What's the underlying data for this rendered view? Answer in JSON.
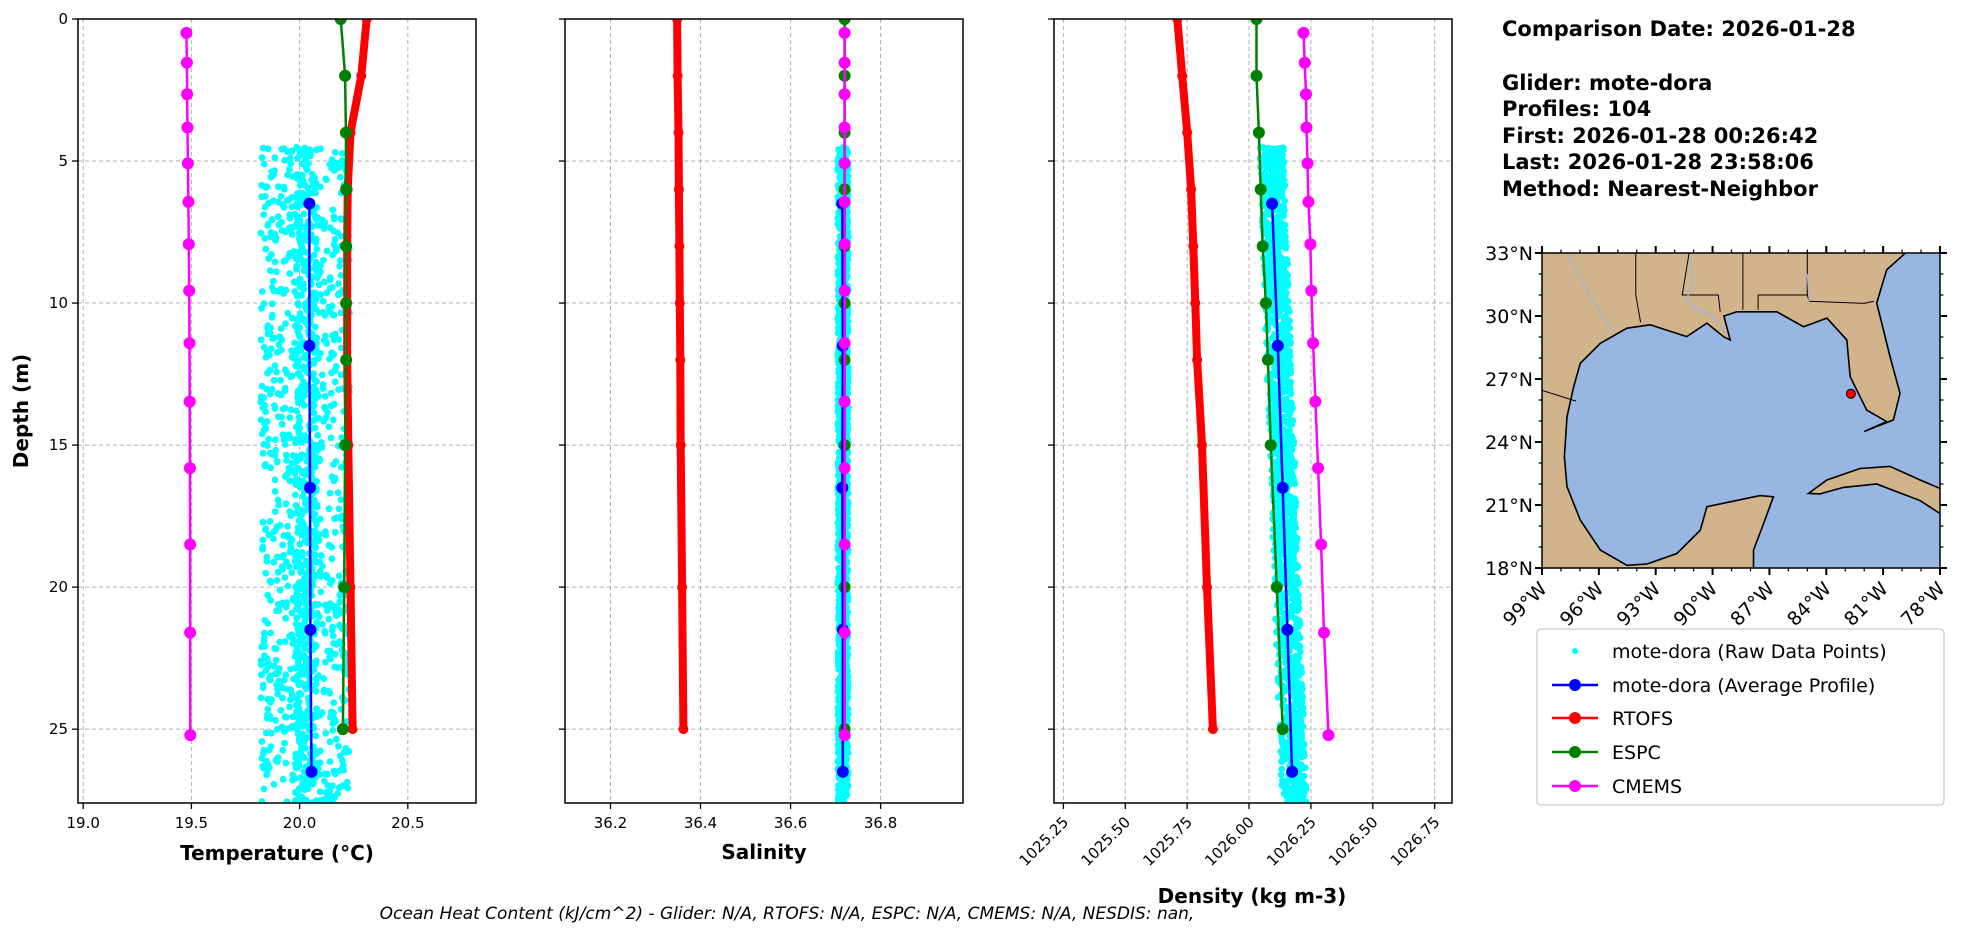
{
  "info": {
    "comparison_date": "Comparison Date: 2026-01-28",
    "glider": "Glider: mote-dora",
    "profiles": "Profiles: 104",
    "first": "First: 2026-01-28 00:26:42",
    "last": "Last: 2026-01-28 23:58:06",
    "method": "Method: Nearest-Neighbor"
  },
  "footer": "Ocean Heat Content (kJ/cm^2) - Glider: N/A,  RTOFS: N/A,  ESPC: N/A,  CMEMS: N/A,  NESDIS: nan,",
  "legend": [
    {
      "label": "mote-dora (Raw Data Points)",
      "color": "#00ffff",
      "style": "points"
    },
    {
      "label": "mote-dora (Average Profile)",
      "color": "#0000ff",
      "style": "line-marker"
    },
    {
      "label": "RTOFS",
      "color": "#ff0000",
      "style": "line-marker"
    },
    {
      "label": "ESPC",
      "color": "#008000",
      "style": "line-marker"
    },
    {
      "label": "CMEMS",
      "color": "#ff00ff",
      "style": "line-marker"
    }
  ],
  "chart_data": [
    {
      "type": "line",
      "title": "",
      "xlabel": "Temperature (°C)",
      "ylabel": "Depth (m)",
      "xlim": [
        18.976,
        20.815
      ],
      "ylim": [
        27.6,
        0
      ],
      "xticks": [
        "19.0",
        "19.5",
        "20.0",
        "20.5"
      ],
      "yticks": [
        "0",
        "5",
        "10",
        "15",
        "20",
        "25"
      ],
      "grid": true,
      "raw_points": {
        "series": "mote-dora (Raw Data Points)",
        "depth_range": [
          4.5,
          27.6
        ],
        "value_range": [
          19.82,
          20.23
        ],
        "center": 20.03
      },
      "series": [
        {
          "name": "mote-dora (Average Profile)",
          "depth": [
            6.5,
            11.5,
            16.5,
            21.5,
            26.5
          ],
          "values": [
            20.045,
            20.045,
            20.048,
            20.05,
            20.055
          ]
        },
        {
          "name": "RTOFS",
          "depth": [
            0,
            2,
            4,
            6,
            8,
            10,
            12,
            15,
            20,
            25
          ],
          "values": [
            20.31,
            20.285,
            20.235,
            20.222,
            20.22,
            20.22,
            20.22,
            20.225,
            20.235,
            20.245
          ]
        },
        {
          "name": "ESPC",
          "depth": [
            0,
            2,
            4,
            6,
            8,
            10,
            12,
            15,
            20,
            25
          ],
          "values": [
            20.19,
            20.21,
            20.214,
            20.215,
            20.215,
            20.215,
            20.215,
            20.21,
            20.206,
            20.2
          ]
        },
        {
          "name": "CMEMS",
          "depth": [
            0.49,
            1.54,
            2.65,
            3.82,
            5.08,
            6.44,
            7.93,
            9.57,
            11.41,
            13.47,
            15.81,
            18.5,
            21.6,
            25.21
          ],
          "values": [
            19.477,
            19.479,
            19.48,
            19.482,
            19.484,
            19.486,
            19.488,
            19.49,
            19.491,
            19.492,
            19.493,
            19.494,
            19.494,
            19.495
          ]
        }
      ]
    },
    {
      "type": "line",
      "title": "",
      "xlabel": "Salinity",
      "ylabel": "",
      "xlim": [
        36.099,
        36.983
      ],
      "ylim": [
        27.6,
        0
      ],
      "xticks": [
        "36.2",
        "36.4",
        "36.6",
        "36.8"
      ],
      "grid": true,
      "raw_points": {
        "series": "mote-dora (Raw Data Points)",
        "depth_range": [
          4.5,
          27.6
        ],
        "value_range": [
          36.705,
          36.728
        ],
        "center": 36.716
      },
      "series": [
        {
          "name": "mote-dora (Average Profile)",
          "depth": [
            6.5,
            11.5,
            16.5,
            21.5,
            26.5
          ],
          "values": [
            36.715,
            36.716,
            36.715,
            36.716,
            36.716
          ]
        },
        {
          "name": "RTOFS",
          "depth": [
            0,
            2,
            4,
            6,
            8,
            10,
            12,
            15,
            20,
            25
          ],
          "values": [
            36.348,
            36.349,
            36.351,
            36.352,
            36.353,
            36.354,
            36.355,
            36.356,
            36.359,
            36.362
          ]
        },
        {
          "name": "ESPC",
          "depth": [
            0,
            2,
            4,
            6,
            8,
            10,
            12,
            15,
            20,
            25
          ],
          "values": [
            36.72,
            36.72,
            36.72,
            36.72,
            36.72,
            36.72,
            36.72,
            36.72,
            36.72,
            36.72
          ]
        },
        {
          "name": "CMEMS",
          "depth": [
            0.49,
            1.54,
            2.65,
            3.82,
            5.08,
            6.44,
            7.93,
            9.57,
            11.41,
            13.47,
            15.81,
            18.5,
            21.6,
            25.21
          ],
          "values": [
            36.72,
            36.72,
            36.72,
            36.72,
            36.72,
            36.72,
            36.72,
            36.72,
            36.72,
            36.72,
            36.72,
            36.72,
            36.72,
            36.72
          ]
        }
      ]
    },
    {
      "type": "line",
      "title": "",
      "xlabel": "Density (kg m-3)",
      "ylabel": "",
      "xlim": [
        1025.212,
        1026.82
      ],
      "ylim": [
        27.6,
        0
      ],
      "xticks": [
        "1025.25",
        "1025.50",
        "1025.75",
        "1026.00",
        "1026.25",
        "1026.50",
        "1026.75"
      ],
      "grid": true,
      "raw_points": {
        "series": "mote-dora (Raw Data Points)",
        "depth_range": [
          4.5,
          27.6
        ],
        "value_range": [
          1026.04,
          1026.2
        ],
        "center_offset_from_average": 0.02
      },
      "series": [
        {
          "name": "mote-dora (Average Profile)",
          "depth": [
            6.5,
            11.5,
            16.5,
            21.5,
            26.5
          ],
          "values": [
            1026.093,
            1026.116,
            1026.136,
            1026.155,
            1026.174
          ]
        },
        {
          "name": "RTOFS",
          "depth": [
            0,
            2,
            4,
            6,
            8,
            10,
            12,
            15,
            20,
            25
          ],
          "values": [
            1025.71,
            1025.73,
            1025.75,
            1025.766,
            1025.775,
            1025.783,
            1025.79,
            1025.81,
            1025.83,
            1025.854
          ]
        },
        {
          "name": "ESPC",
          "depth": [
            0,
            2,
            4,
            6,
            8,
            10,
            12,
            15,
            20,
            25
          ],
          "values": [
            1026.03,
            1026.03,
            1026.04,
            1026.047,
            1026.055,
            1026.068,
            1026.076,
            1026.088,
            1026.112,
            1026.136
          ]
        },
        {
          "name": "CMEMS",
          "depth": [
            0.49,
            1.54,
            2.65,
            3.82,
            5.08,
            6.44,
            7.93,
            9.57,
            11.41,
            13.47,
            15.81,
            18.5,
            21.6,
            25.21
          ],
          "values": [
            1026.22,
            1026.225,
            1026.23,
            1026.232,
            1026.236,
            1026.24,
            1026.248,
            1026.252,
            1026.259,
            1026.268,
            1026.279,
            1026.291,
            1026.303,
            1026.321
          ]
        }
      ]
    },
    {
      "type": "scatter",
      "title": "",
      "xlim": [
        -99,
        -78
      ],
      "ylim": [
        18,
        33
      ],
      "xticks": [
        "99°W",
        "96°W",
        "93°W",
        "90°W",
        "87°W",
        "84°W",
        "81°W",
        "78°W"
      ],
      "yticks": [
        "33°N",
        "30°N",
        "27°N",
        "24°N",
        "21°N",
        "18°N"
      ],
      "colors": {
        "land": "#d2b48c",
        "ocean": "#97b6e1",
        "river": "#97b6e1"
      },
      "points": [
        {
          "name": "mote-dora glider location",
          "lon": -82.7,
          "lat": 26.3,
          "color": "#ff0000"
        }
      ]
    }
  ]
}
